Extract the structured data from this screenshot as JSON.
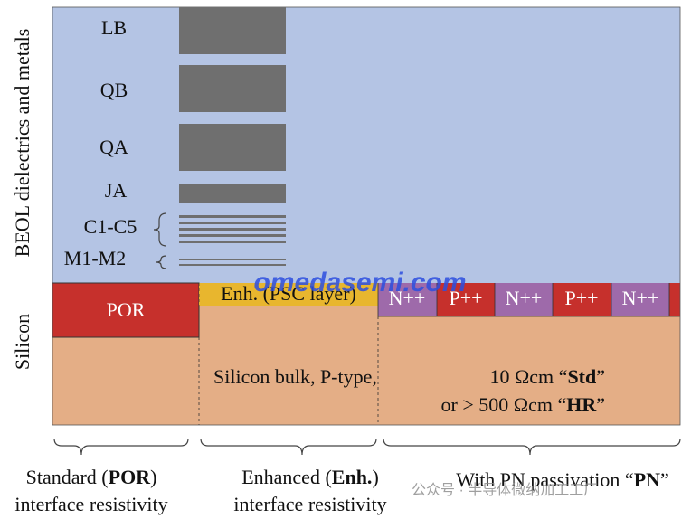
{
  "side_labels": {
    "beol": "BEOL dielectrics and metals",
    "silicon": "Silicon"
  },
  "layers": [
    "LB",
    "QB",
    "QA",
    "JA",
    "C1-C5",
    "M1-M2"
  ],
  "regions": {
    "por": "POR",
    "enh": "Enh. (PSC layer)",
    "pn": [
      "N++",
      "P++",
      "N++",
      "P++",
      "N++"
    ]
  },
  "bulk": {
    "line1": "Silicon bulk, P-type,",
    "std_prefix": "10 Ωcm “",
    "std_bold": "Std",
    "std_suffix": "”",
    "hr_prefix": "or > 500 Ωcm “",
    "hr_bold": "HR",
    "hr_suffix": "”"
  },
  "captions": [
    {
      "prefix": "Standard (",
      "bold": "POR",
      "suffix": ")",
      "line2": "interface resistivity"
    },
    {
      "prefix": "Enhanced (",
      "bold": "Enh.",
      "suffix": ")",
      "line2": "interface resistivity"
    },
    {
      "prefix": "With PN passivation “",
      "bold": "PN",
      "suffix": "”"
    }
  ],
  "watermarks": [
    "omedasemi.com",
    "公众号 · 半导体微纳加工工厂"
  ]
}
